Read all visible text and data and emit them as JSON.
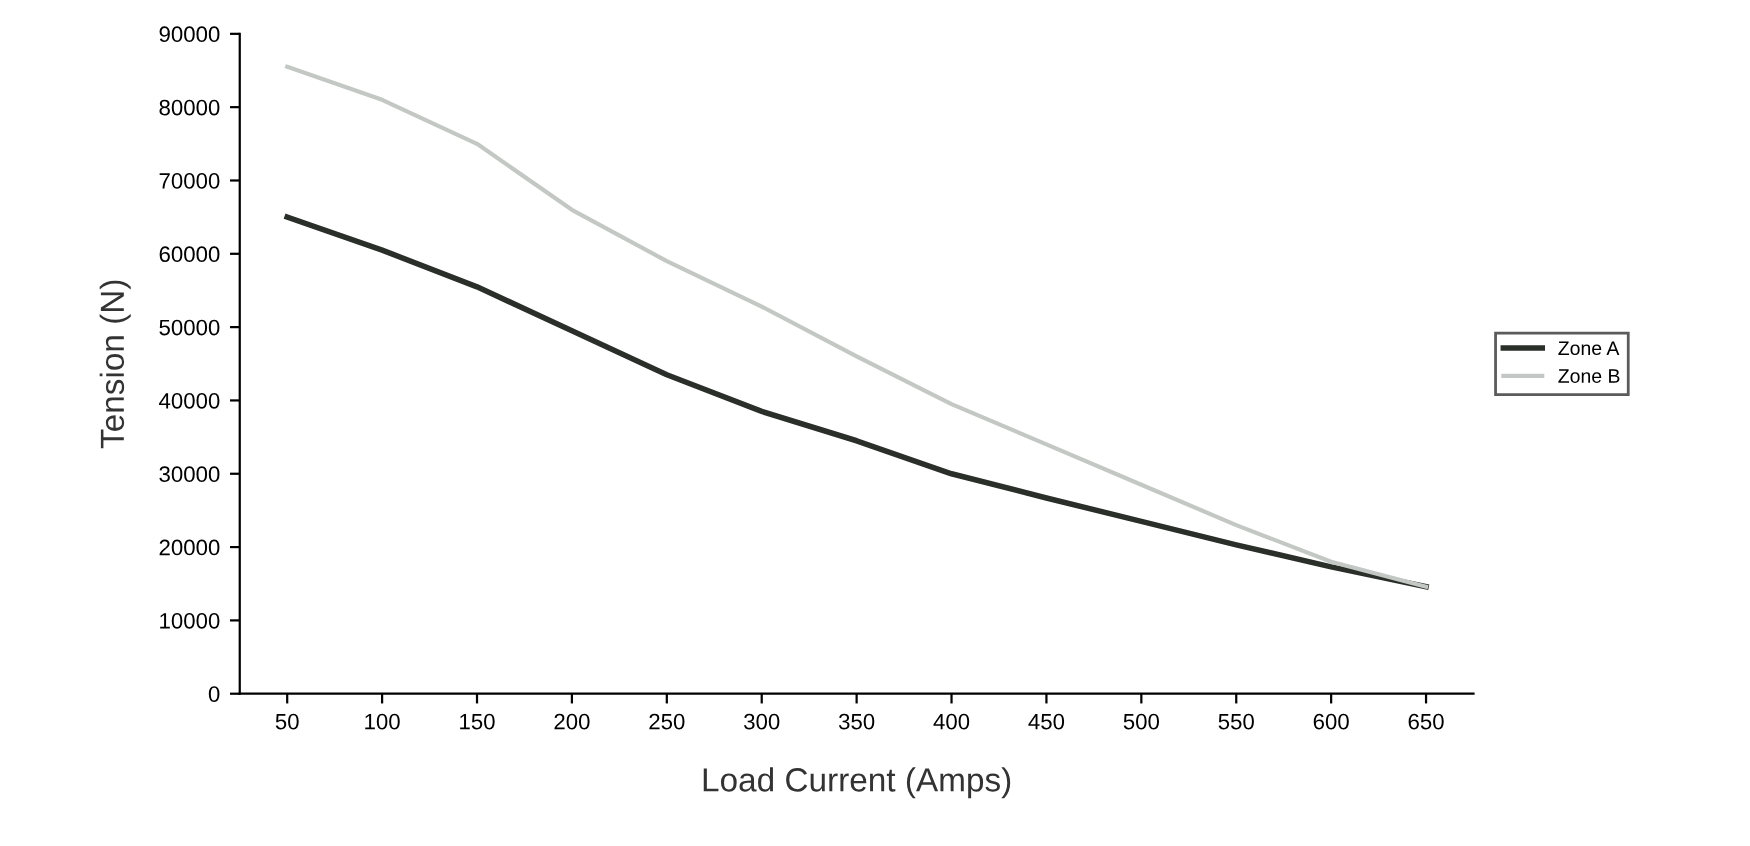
{
  "chart_data": {
    "type": "line",
    "xlabel": "Load Current (Amps)",
    "ylabel": "Tension (N)",
    "categories": [
      "50",
      "100",
      "150",
      "200",
      "250",
      "300",
      "350",
      "400",
      "450",
      "500",
      "550",
      "600",
      "650"
    ],
    "series": [
      {
        "name": "Zone A",
        "color": "#2a2f2a",
        "values": [
          65000,
          60500,
          55500,
          49500,
          43500,
          38500,
          34500,
          30000,
          26700,
          23500,
          20300,
          17300,
          14600
        ]
      },
      {
        "name": "Zone B",
        "color": "#c4c8c4",
        "values": [
          85500,
          81000,
          75000,
          66000,
          59000,
          52800,
          46000,
          39500,
          34000,
          28500,
          23000,
          18000,
          14600
        ]
      }
    ],
    "ylim": [
      0,
      90000
    ],
    "yticks": [
      0,
      10000,
      20000,
      30000,
      40000,
      50000,
      60000,
      70000,
      80000,
      90000
    ],
    "grid": false,
    "legend": "right",
    "marker": "none",
    "line_style": "solid"
  }
}
